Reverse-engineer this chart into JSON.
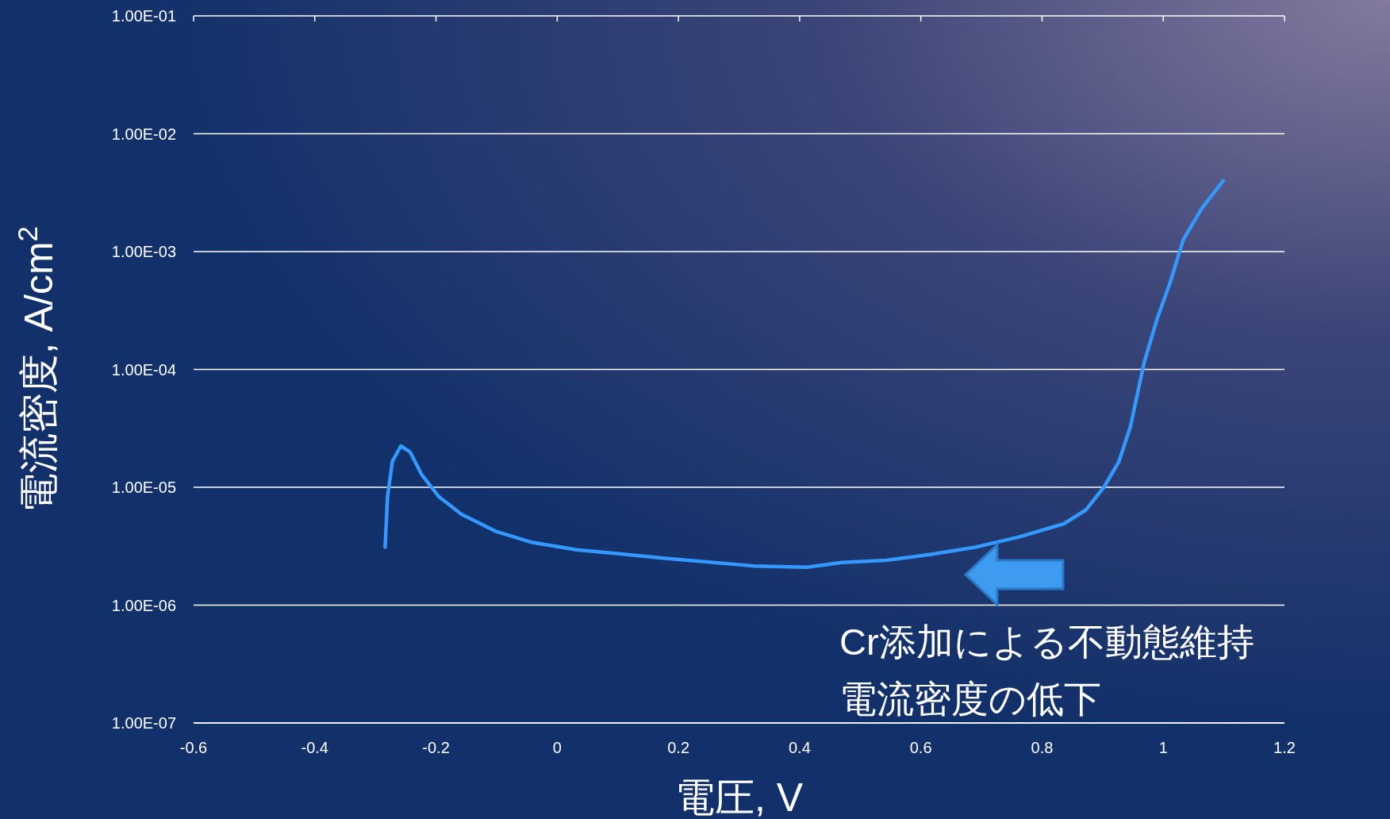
{
  "chart_data": {
    "type": "line",
    "xlabel": "電圧, V",
    "ylabel": "電流密度, A/cm$^{2}$",
    "log": "y",
    "grid": "y",
    "marker": "none",
    "line_style": "solid",
    "xlim": [
      -0.6,
      1.2
    ],
    "xticks": [
      -0.6,
      -0.4,
      -0.2,
      0,
      0.2,
      0.4,
      0.6,
      0.8,
      1,
      1.2
    ],
    "ylim": [
      1e-07,
      0.1
    ],
    "yticks": [
      {
        "value": 1e-07,
        "label": "1.00E-07"
      },
      {
        "value": 1e-06,
        "label": "1.00E-06"
      },
      {
        "value": 1e-05,
        "label": "1.00E-05"
      },
      {
        "value": 0.0001,
        "label": "1.00E-04"
      },
      {
        "value": 0.001,
        "label": "1.00E-03"
      },
      {
        "value": 0.01,
        "label": "1.00E-02"
      },
      {
        "value": 0.1,
        "label": "1.00E-01"
      }
    ],
    "x": [
      -0.284,
      -0.28,
      -0.272,
      -0.258,
      -0.243,
      -0.224,
      -0.195,
      -0.158,
      -0.1,
      -0.041,
      0.032,
      0.178,
      0.324,
      0.412,
      0.47,
      0.543,
      0.617,
      0.69,
      0.763,
      0.836,
      0.872,
      0.902,
      0.927,
      0.946,
      0.968,
      0.99,
      1.011,
      1.033,
      1.063,
      1.099
    ],
    "series": [
      {
        "color": "#3399ff",
        "values": [
          3.1e-06,
          8.3e-06,
          1.66e-05,
          2.24e-05,
          2e-05,
          1.29e-05,
          8.3e-06,
          5.9e-06,
          4.2e-06,
          3.4e-06,
          2.95e-06,
          2.5e-06,
          2.15e-06,
          2.1e-06,
          2.3e-06,
          2.4e-06,
          2.7e-06,
          3.1e-06,
          3.8e-06,
          4.9e-06,
          6.4e-06,
          1e-05,
          1.66e-05,
          3.3e-05,
          0.000112,
          0.00027,
          0.00054,
          0.00126,
          0.0023,
          0.004
        ]
      }
    ],
    "annotations": [
      "Cr添加による不動態維持",
      "電流密度の低下"
    ]
  }
}
